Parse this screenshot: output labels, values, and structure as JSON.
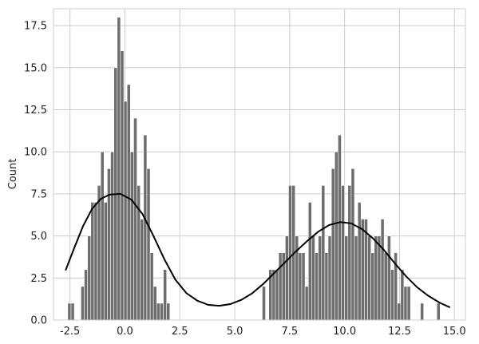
{
  "chart_data": {
    "type": "bar",
    "title": "",
    "xlabel": "",
    "ylabel": "Count",
    "xlim": [
      -3.25,
      15.5
    ],
    "ylim": [
      0,
      18.5
    ],
    "xticks": [
      "-2.5",
      "0.0",
      "2.5",
      "5.0",
      "7.5",
      "10.0",
      "12.5",
      "15.0"
    ],
    "xtick_values": [
      -2.5,
      0,
      2.5,
      5,
      7.5,
      10,
      12.5,
      15
    ],
    "yticks": [
      "0.0",
      "2.5",
      "5.0",
      "7.5",
      "10.0",
      "12.5",
      "15.0",
      "17.5"
    ],
    "ytick_values": [
      0,
      2.5,
      5,
      7.5,
      10,
      12.5,
      15,
      17.5
    ],
    "grid": true,
    "bin_start": -2.6,
    "bin_width": 0.15,
    "counts": [
      1,
      1,
      0,
      0,
      2,
      3,
      5,
      7,
      7,
      8,
      10,
      7,
      9,
      10,
      15,
      18,
      16,
      13,
      14,
      10,
      12,
      8,
      6,
      11,
      9,
      4,
      2,
      1,
      1,
      3,
      1,
      0,
      0,
      0,
      0,
      0,
      0,
      0,
      0,
      0,
      0,
      0,
      0,
      0,
      0,
      0,
      0,
      0,
      0,
      0,
      0,
      0,
      0,
      0,
      0,
      0,
      0,
      0,
      0,
      2,
      0,
      3,
      3,
      3,
      4,
      4,
      5,
      8,
      8,
      5,
      4,
      4,
      2,
      7,
      5,
      4,
      5,
      8,
      4,
      5,
      9,
      10,
      11,
      8,
      5,
      8,
      9,
      5,
      7,
      6,
      6,
      5,
      4,
      5,
      5,
      6,
      4,
      5,
      3,
      4,
      1,
      3,
      2,
      2,
      0,
      0,
      0,
      1,
      0,
      0,
      0,
      0,
      1
    ],
    "kde": [
      [
        -2.7,
        2.95
      ],
      [
        -2.3,
        4.3
      ],
      [
        -1.9,
        5.6
      ],
      [
        -1.5,
        6.6
      ],
      [
        -1.1,
        7.2
      ],
      [
        -0.7,
        7.45
      ],
      [
        -0.2,
        7.5
      ],
      [
        0.3,
        7.15
      ],
      [
        0.8,
        6.3
      ],
      [
        1.3,
        5.0
      ],
      [
        1.8,
        3.6
      ],
      [
        2.3,
        2.4
      ],
      [
        2.8,
        1.6
      ],
      [
        3.3,
        1.15
      ],
      [
        3.8,
        0.9
      ],
      [
        4.3,
        0.85
      ],
      [
        4.8,
        0.95
      ],
      [
        5.3,
        1.2
      ],
      [
        5.8,
        1.6
      ],
      [
        6.3,
        2.15
      ],
      [
        6.8,
        2.8
      ],
      [
        7.3,
        3.45
      ],
      [
        7.8,
        4.1
      ],
      [
        8.3,
        4.7
      ],
      [
        8.8,
        5.25
      ],
      [
        9.3,
        5.65
      ],
      [
        9.8,
        5.82
      ],
      [
        10.3,
        5.75
      ],
      [
        10.8,
        5.4
      ],
      [
        11.3,
        4.85
      ],
      [
        11.8,
        4.15
      ],
      [
        12.3,
        3.35
      ],
      [
        12.8,
        2.6
      ],
      [
        13.3,
        1.95
      ],
      [
        13.8,
        1.45
      ],
      [
        14.3,
        1.05
      ],
      [
        14.8,
        0.75
      ]
    ],
    "colors": {
      "bar_fill": "#6e6e6e",
      "bar_edge": "#ffffff",
      "kde_line": "#000000",
      "grid": "#cccccc",
      "frame": "#cccccc"
    }
  }
}
